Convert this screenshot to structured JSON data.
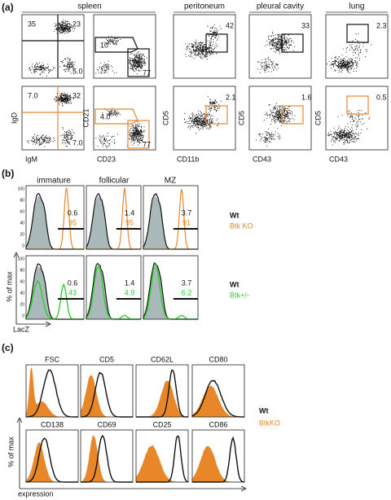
{
  "panel_a": {
    "label": "(a)",
    "tissues": [
      "spleen",
      "peritoneum",
      "pleural cavity",
      "lung"
    ],
    "row1_numbers": [
      [
        "35",
        "23",
        "5.0"
      ],
      [
        "10",
        "77"
      ],
      [
        "42"
      ],
      [
        "33"
      ],
      [
        "2.3"
      ]
    ],
    "row2_numbers": [
      [
        "7.0",
        "32",
        "7.0"
      ],
      [
        "4.0",
        "77"
      ],
      [
        "2.1"
      ],
      [
        "1.6"
      ],
      [
        "0.5"
      ]
    ],
    "axis_labels": [
      [
        "IgD",
        "IgM"
      ],
      [
        "CD21",
        "CD23"
      ],
      [
        "CD5",
        "CD11b"
      ],
      [
        "CD5",
        "CD43"
      ],
      [
        "CD5",
        "CD43"
      ]
    ]
  },
  "panel_b": {
    "label": "(b)",
    "populations": [
      "immature",
      "follicular",
      "MZ"
    ],
    "row1_numbers": [
      [
        "0.6",
        "95"
      ],
      [
        "1.4",
        "95"
      ],
      [
        "3.7",
        "91"
      ]
    ],
    "row2_numbers": [
      [
        "0.6",
        "43"
      ],
      [
        "1.4",
        "4.9"
      ],
      [
        "3.7",
        "6.2"
      ]
    ],
    "legend1": [
      "Wt",
      "Btk KO"
    ],
    "legend2": [
      "Wt",
      "Btk+/-"
    ],
    "y_ticks": [
      "100",
      "80",
      "60",
      "40",
      "20",
      "0"
    ],
    "y_label": "% of max",
    "x_label": "LacZ"
  },
  "panel_c": {
    "label": "(c)",
    "markers_row1": [
      "FSC",
      "CD5",
      "CD62L",
      "CD80"
    ],
    "markers_row2": [
      "CD138",
      "CD69",
      "CD25",
      "CD86"
    ],
    "legend": [
      "Wt",
      "BtkKO"
    ],
    "y_label": "% of max",
    "x_label": "expression"
  }
}
